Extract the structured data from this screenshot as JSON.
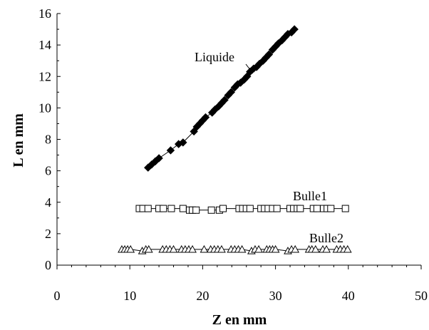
{
  "chart_data": {
    "type": "scatter",
    "title": "",
    "xlabel": "Z en mm",
    "ylabel": "L en mm",
    "xlim": [
      0,
      50
    ],
    "ylim": [
      0,
      16
    ],
    "x_ticks": [
      "0",
      "10",
      "20",
      "30",
      "40",
      "50"
    ],
    "y_ticks": [
      "0",
      "2",
      "4",
      "6",
      "8",
      "10",
      "12",
      "14",
      "16"
    ],
    "grid": false,
    "series": [
      {
        "name": "Liquide",
        "marker": "diamond-filled",
        "connected": true,
        "x": [
          12.5,
          13.0,
          13.5,
          14.0,
          15.6,
          16.7,
          17.3,
          18.8,
          19.2,
          19.6,
          20.0,
          20.4,
          21.3,
          21.7,
          22.2,
          22.6,
          23.0,
          23.5,
          23.9,
          24.4,
          24.8,
          25.2,
          25.7,
          26.1,
          26.5,
          27.0,
          27.4,
          27.8,
          28.3,
          28.7,
          29.1,
          29.6,
          30.0,
          30.4,
          30.9,
          31.3,
          31.7,
          32.2,
          32.6
        ],
        "y": [
          6.2,
          6.4,
          6.6,
          6.8,
          7.3,
          7.7,
          7.8,
          8.5,
          8.8,
          9.0,
          9.2,
          9.4,
          9.7,
          9.9,
          10.1,
          10.3,
          10.5,
          10.8,
          11.0,
          11.3,
          11.5,
          11.6,
          11.8,
          12.0,
          12.3,
          12.5,
          12.6,
          12.8,
          13.0,
          13.2,
          13.4,
          13.7,
          13.9,
          14.1,
          14.3,
          14.5,
          14.7,
          14.8,
          15.0
        ]
      },
      {
        "name": "Bulle1",
        "marker": "square-open",
        "connected": true,
        "x": [
          11.3,
          11.8,
          12.5,
          14.0,
          14.6,
          15.7,
          17.3,
          18.2,
          18.6,
          19.1,
          21.2,
          22.3,
          22.8,
          25.0,
          25.5,
          26.0,
          26.5,
          28.0,
          28.5,
          29.0,
          29.6,
          30.2,
          32.0,
          32.5,
          33.0,
          33.4,
          35.2,
          35.7,
          36.6,
          37.1,
          37.6,
          39.6
        ],
        "y": [
          3.6,
          3.6,
          3.6,
          3.6,
          3.6,
          3.6,
          3.6,
          3.5,
          3.5,
          3.5,
          3.5,
          3.5,
          3.6,
          3.6,
          3.6,
          3.6,
          3.6,
          3.6,
          3.6,
          3.6,
          3.6,
          3.6,
          3.6,
          3.6,
          3.6,
          3.6,
          3.6,
          3.6,
          3.6,
          3.6,
          3.6,
          3.6
        ]
      },
      {
        "name": "Bulle2",
        "marker": "triangle-open",
        "connected": true,
        "x": [
          8.9,
          9.3,
          9.7,
          10.1,
          11.7,
          12.2,
          12.6,
          14.5,
          15.0,
          15.5,
          16.0,
          17.1,
          17.6,
          18.1,
          18.6,
          20.2,
          21.1,
          21.6,
          22.1,
          22.6,
          23.9,
          24.4,
          24.9,
          25.4,
          26.7,
          27.2,
          27.7,
          28.8,
          29.2,
          29.6,
          30.0,
          31.7,
          32.2,
          32.7,
          34.6,
          35.0,
          35.5,
          36.5,
          37.0,
          38.4,
          38.9,
          39.4,
          39.9
        ],
        "y": [
          1.0,
          1.0,
          1.0,
          1.0,
          0.9,
          1.0,
          1.0,
          1.0,
          1.0,
          1.0,
          1.0,
          1.0,
          1.0,
          1.0,
          1.0,
          1.0,
          1.0,
          1.0,
          1.0,
          1.0,
          1.0,
          1.0,
          1.0,
          1.0,
          0.9,
          1.0,
          1.0,
          1.0,
          1.0,
          1.0,
          1.0,
          0.9,
          1.0,
          1.0,
          1.0,
          1.0,
          1.0,
          1.0,
          1.0,
          1.0,
          1.0,
          1.0,
          1.0
        ]
      }
    ],
    "annotations": [
      {
        "text": "Liquide",
        "series": "Liquide"
      },
      {
        "text": "Bulle1",
        "series": "Bulle1"
      },
      {
        "text": "Bulle2",
        "series": "Bulle2"
      }
    ]
  }
}
